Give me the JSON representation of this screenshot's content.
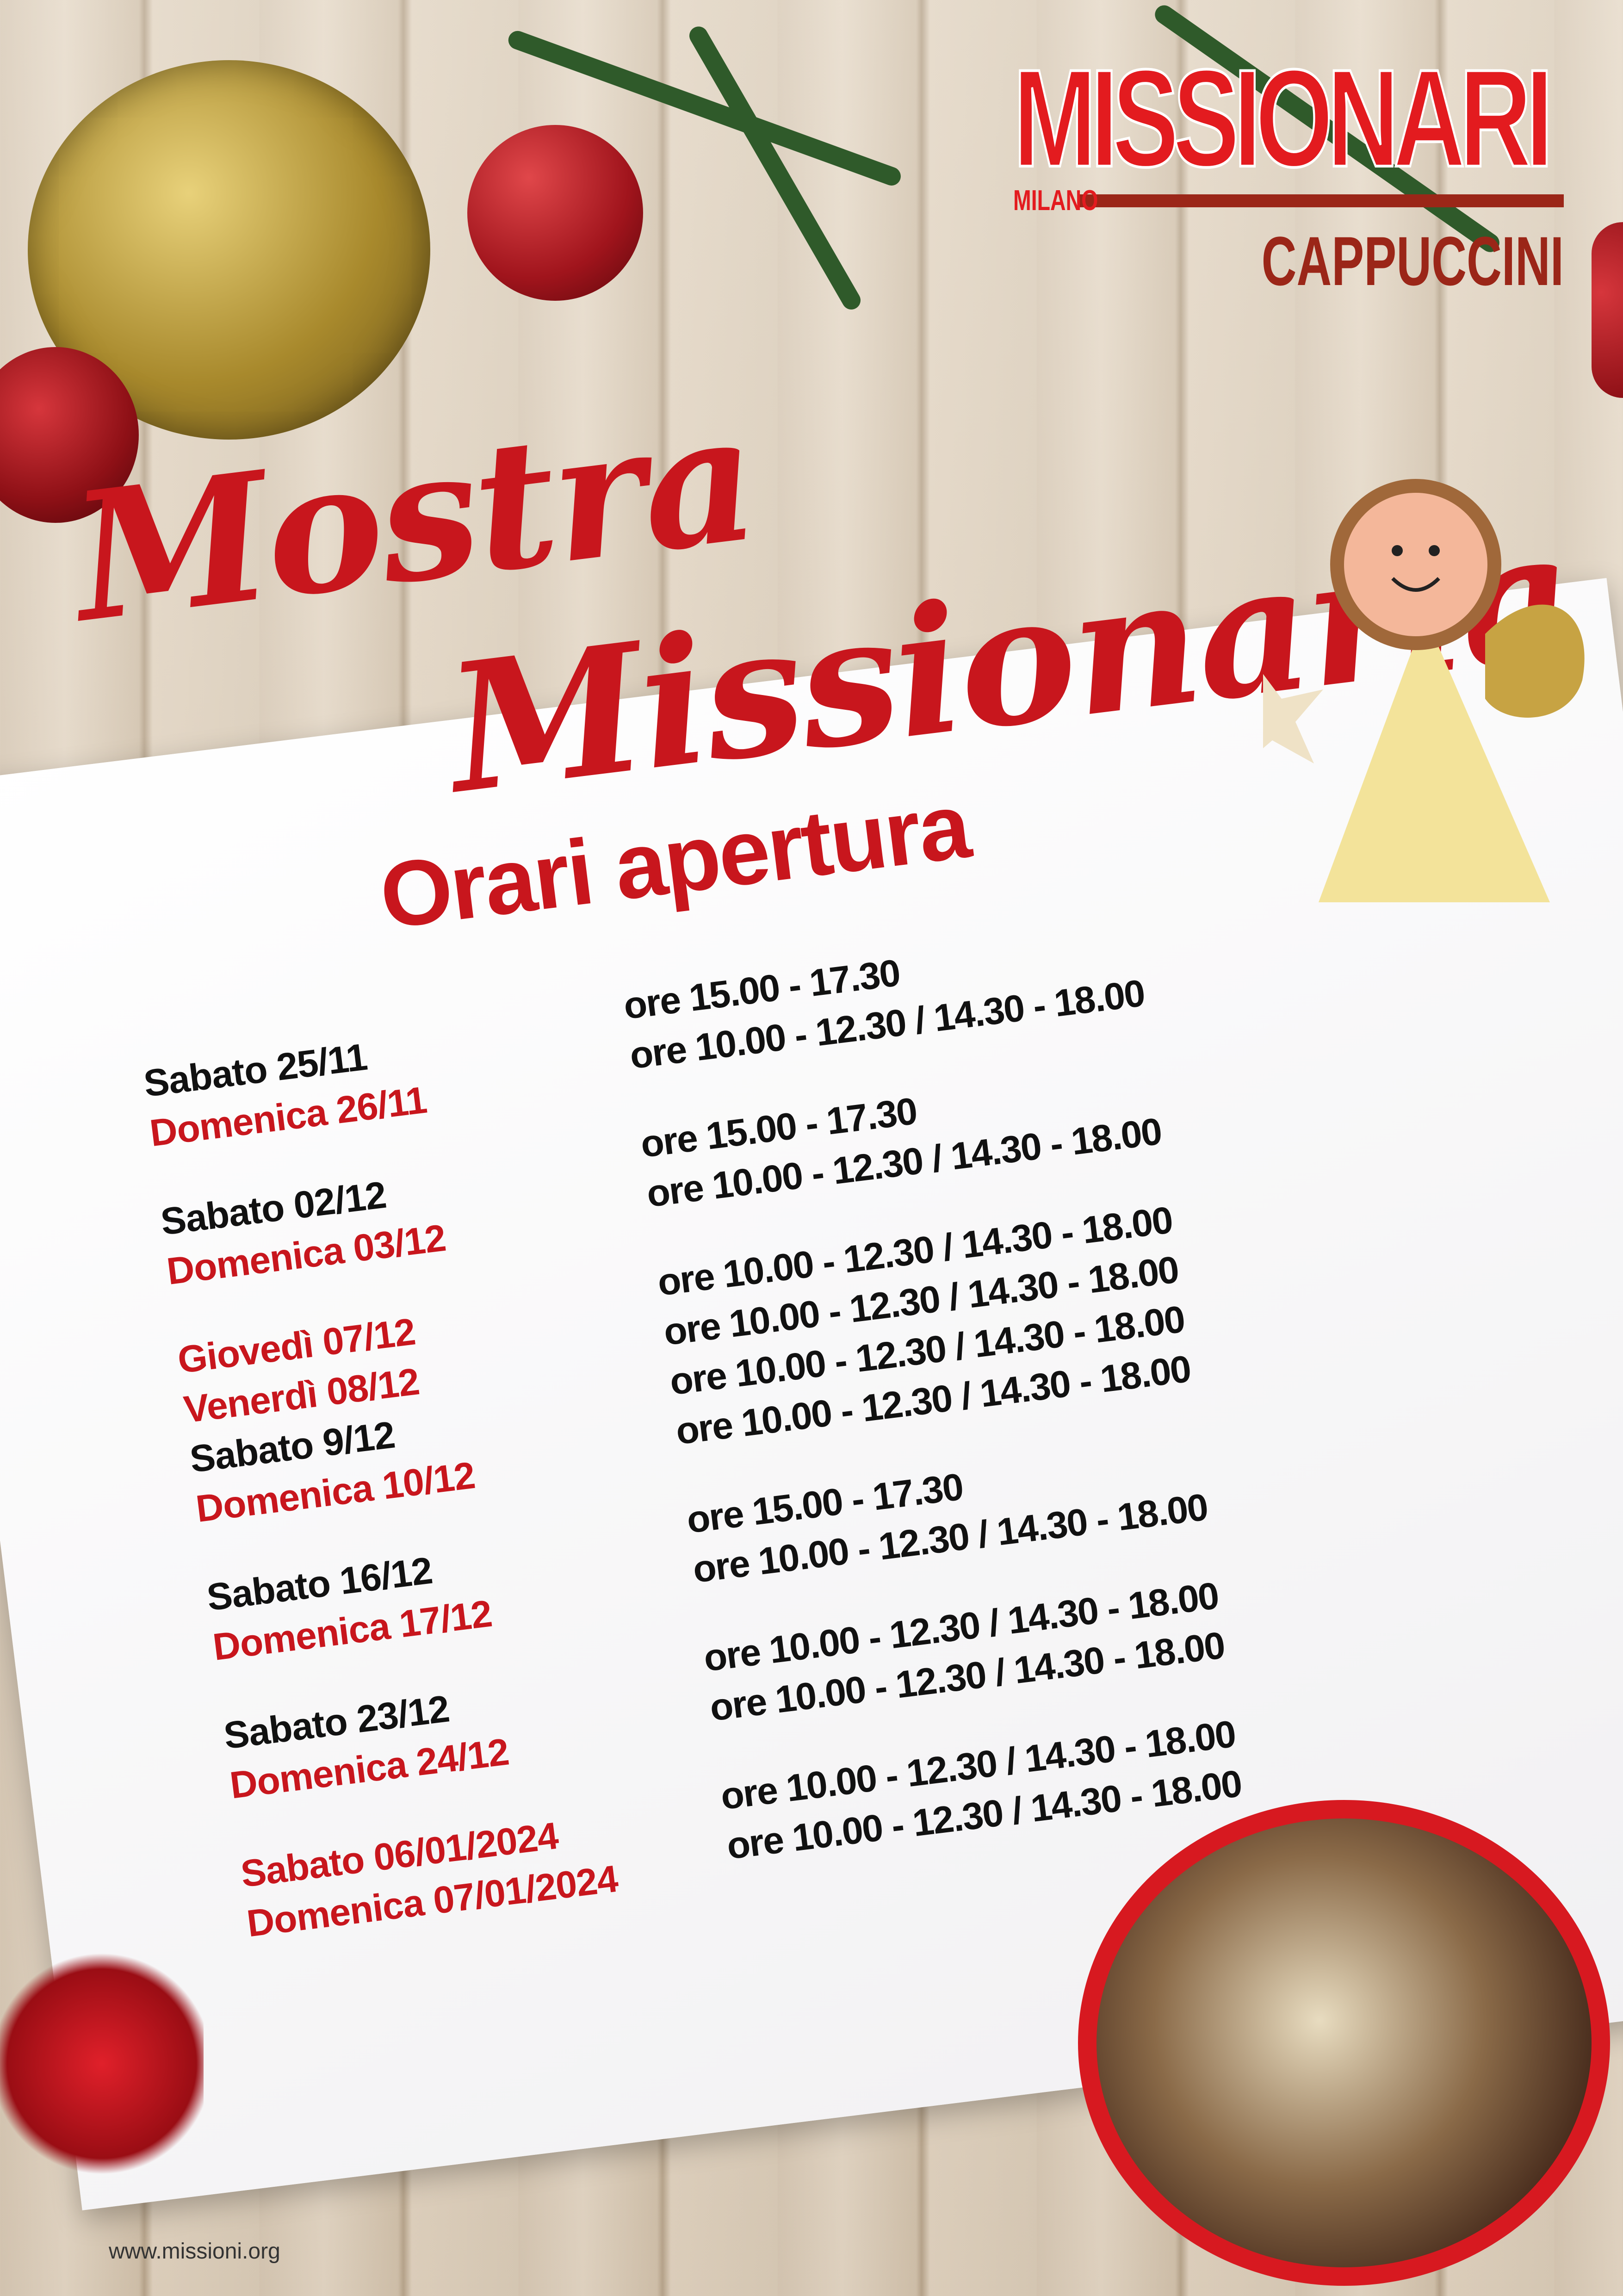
{
  "logo": {
    "main": "MISSIONARI",
    "milano": "MILANO",
    "sub": "CAPPUCCINI"
  },
  "title": {
    "line1": "Mostra",
    "line2": "Missionaria"
  },
  "heading": "Orari apertura",
  "colors": {
    "red": "#c8161d",
    "black": "#111111",
    "logo_red": "#e31b1f",
    "logo_brown": "#9b2618"
  },
  "schedule": [
    {
      "rows": [
        {
          "day": "Sabato 25/11",
          "time": "ore 15.00 - 17.30",
          "color": "#111111"
        },
        {
          "day": "Domenica 26/11",
          "time": "ore 10.00 - 12.30 / 14.30 - 18.00",
          "color": "#c8161d"
        }
      ]
    },
    {
      "rows": [
        {
          "day": "Sabato 02/12",
          "time": "ore 15.00 - 17.30",
          "color": "#111111"
        },
        {
          "day": "Domenica 03/12",
          "time": "ore 10.00 - 12.30 / 14.30 - 18.00",
          "color": "#c8161d"
        }
      ]
    },
    {
      "rows": [
        {
          "day": "Giovedì 07/12",
          "time": "ore 10.00 - 12.30 / 14.30 - 18.00",
          "color": "#c8161d"
        },
        {
          "day": "Venerdì 08/12",
          "time": "ore 10.00 - 12.30 / 14.30 - 18.00",
          "color": "#c8161d"
        },
        {
          "day": "Sabato 9/12",
          "time": "ore 10.00 - 12.30 / 14.30 - 18.00",
          "color": "#111111"
        },
        {
          "day": "Domenica 10/12",
          "time": "ore 10.00 - 12.30 / 14.30 - 18.00",
          "color": "#c8161d"
        }
      ]
    },
    {
      "rows": [
        {
          "day": "Sabato 16/12",
          "time": "ore 15.00 - 17.30",
          "color": "#111111"
        },
        {
          "day": "Domenica 17/12",
          "time": "ore 10.00 - 12.30 / 14.30 - 18.00",
          "color": "#c8161d"
        }
      ]
    },
    {
      "rows": [
        {
          "day": "Sabato 23/12",
          "time": "ore 10.00 - 12.30 / 14.30 - 18.00",
          "color": "#111111"
        },
        {
          "day": "Domenica 24/12",
          "time": "ore 10.00 - 12.30 / 14.30 - 18.00",
          "color": "#c8161d"
        }
      ]
    },
    {
      "rows": [
        {
          "day": "Sabato 06/01/2024",
          "time": "ore 10.00 - 12.30 / 14.30 - 18.00",
          "color": "#c8161d"
        },
        {
          "day": "Domenica 07/01/2024",
          "time": "ore 10.00 - 12.30 / 14.30 - 18.00",
          "color": "#c8161d"
        }
      ]
    }
  ],
  "footer": {
    "url": "www.missioni.org"
  }
}
